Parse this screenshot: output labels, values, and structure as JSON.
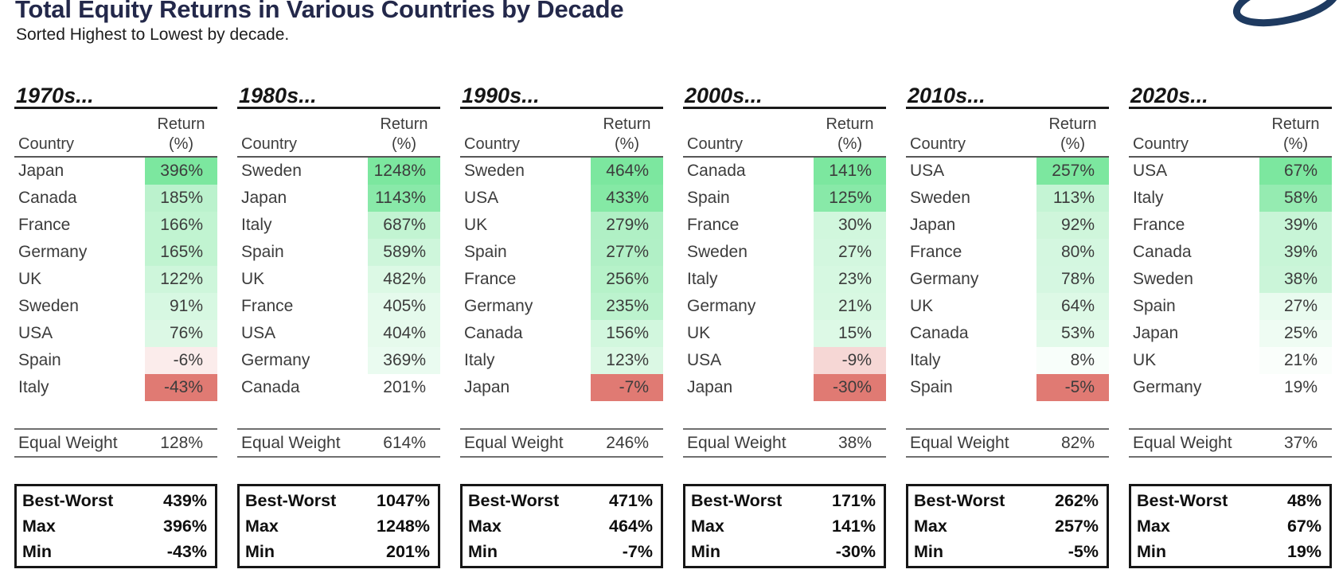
{
  "header": {
    "title": "Total Equity Returns in Various Countries by Decade",
    "subtitle": "Sorted Highest to Lowest by decade.",
    "logo_color": "#1e3a60"
  },
  "table_labels": {
    "return_line1": "Return",
    "return_line2": "(%)",
    "country": "Country",
    "equal_weight": "Equal Weight",
    "best_worst": "Best-Worst",
    "max": "Max",
    "min": "Min"
  },
  "colors": {
    "title_navy": "#23284a",
    "max_positive_fill": "#7CE79F",
    "max_negative_fill": "#E07A73",
    "neutral_fill": "#FFFFFF"
  },
  "decades": [
    {
      "label": "1970s...",
      "rows": [
        {
          "country": "Japan",
          "return": "396%",
          "fill": "#7CE79F"
        },
        {
          "country": "Canada",
          "return": "185%",
          "fill": "#BBF2CD"
        },
        {
          "country": "France",
          "return": "166%",
          "fill": "#C1F4D1"
        },
        {
          "country": "Germany",
          "return": "165%",
          "fill": "#C1F4D1"
        },
        {
          "country": "UK",
          "return": "122%",
          "fill": "#CEF6DB"
        },
        {
          "country": "Sweden",
          "return": "91%",
          "fill": "#D7F8E2"
        },
        {
          "country": "USA",
          "return": "76%",
          "fill": "#DCF8E5"
        },
        {
          "country": "Spain",
          "return": "-6%",
          "fill": "#FBECEB"
        },
        {
          "country": "Italy",
          "return": "-43%",
          "fill": "#E07A73"
        }
      ],
      "equal_weight": "128%",
      "stats": {
        "best_worst": "439%",
        "max": "396%",
        "min": "-43%"
      }
    },
    {
      "label": "1980s...",
      "rows": [
        {
          "country": "Sweden",
          "return": "1248%",
          "fill": "#7CE79F"
        },
        {
          "country": "Japan",
          "return": "1143%",
          "fill": "#89E9A9"
        },
        {
          "country": "Italy",
          "return": "687%",
          "fill": "#C2F4D2"
        },
        {
          "country": "Spain",
          "return": "589%",
          "fill": "#CEF6DB"
        },
        {
          "country": "UK",
          "return": "482%",
          "fill": "#DCF9E5"
        },
        {
          "country": "France",
          "return": "405%",
          "fill": "#E5FAEC"
        },
        {
          "country": "USA",
          "return": "404%",
          "fill": "#E6FAEC"
        },
        {
          "country": "Germany",
          "return": "369%",
          "fill": "#EAFBF0"
        },
        {
          "country": "Canada",
          "return": "201%",
          "fill": "#FFFFFF"
        }
      ],
      "equal_weight": "614%",
      "stats": {
        "best_worst": "1047%",
        "max": "1248%",
        "min": "201%"
      }
    },
    {
      "label": "1990s...",
      "rows": [
        {
          "country": "Sweden",
          "return": "464%",
          "fill": "#7CE79F"
        },
        {
          "country": "USA",
          "return": "433%",
          "fill": "#85E9A5"
        },
        {
          "country": "UK",
          "return": "279%",
          "fill": "#B0F0C5"
        },
        {
          "country": "Spain",
          "return": "277%",
          "fill": "#B1F0C6"
        },
        {
          "country": "France",
          "return": "256%",
          "fill": "#B6F2C9"
        },
        {
          "country": "Germany",
          "return": "235%",
          "fill": "#BCF3CE"
        },
        {
          "country": "Canada",
          "return": "156%",
          "fill": "#D2F7DE"
        },
        {
          "country": "Italy",
          "return": "123%",
          "fill": "#DBF8E4"
        },
        {
          "country": "Japan",
          "return": "-7%",
          "fill": "#E07A73"
        }
      ],
      "equal_weight": "246%",
      "stats": {
        "best_worst": "471%",
        "max": "464%",
        "min": "-7%"
      }
    },
    {
      "label": "2000s...",
      "rows": [
        {
          "country": "Canada",
          "return": "141%",
          "fill": "#7CE79F"
        },
        {
          "country": "Spain",
          "return": "125%",
          "fill": "#88E9A8"
        },
        {
          "country": "France",
          "return": "30%",
          "fill": "#D1F7DD"
        },
        {
          "country": "Sweden",
          "return": "27%",
          "fill": "#D3F7DF"
        },
        {
          "country": "Italy",
          "return": "23%",
          "fill": "#D6F8E1"
        },
        {
          "country": "Germany",
          "return": "21%",
          "fill": "#D8F8E2"
        },
        {
          "country": "UK",
          "return": "15%",
          "fill": "#DDF9E6"
        },
        {
          "country": "USA",
          "return": "-9%",
          "fill": "#F6D7D5"
        },
        {
          "country": "Japan",
          "return": "-30%",
          "fill": "#E07A73"
        }
      ],
      "equal_weight": "38%",
      "stats": {
        "best_worst": "171%",
        "max": "141%",
        "min": "-30%"
      }
    },
    {
      "label": "2010s...",
      "rows": [
        {
          "country": "USA",
          "return": "257%",
          "fill": "#7CE79F"
        },
        {
          "country": "Sweden",
          "return": "113%",
          "fill": "#C4F4D4"
        },
        {
          "country": "Japan",
          "return": "92%",
          "fill": "#CFF6DB"
        },
        {
          "country": "France",
          "return": "80%",
          "fill": "#D4F7E0"
        },
        {
          "country": "Germany",
          "return": "78%",
          "fill": "#D5F7E1"
        },
        {
          "country": "UK",
          "return": "64%",
          "fill": "#DDF9E6"
        },
        {
          "country": "Canada",
          "return": "53%",
          "fill": "#E2FAEA"
        },
        {
          "country": "Italy",
          "return": "8%",
          "fill": "#F8FEFA"
        },
        {
          "country": "Spain",
          "return": "-5%",
          "fill": "#E07A73"
        }
      ],
      "equal_weight": "82%",
      "stats": {
        "best_worst": "262%",
        "max": "257%",
        "min": "-5%"
      }
    },
    {
      "label": "2020s...",
      "rows": [
        {
          "country": "USA",
          "return": "67%",
          "fill": "#7CE79F"
        },
        {
          "country": "Italy",
          "return": "58%",
          "fill": "#95EBB1"
        },
        {
          "country": "France",
          "return": "39%",
          "fill": "#C8F5D7"
        },
        {
          "country": "Canada",
          "return": "39%",
          "fill": "#C8F5D7"
        },
        {
          "country": "Sweden",
          "return": "38%",
          "fill": "#CBF5D9"
        },
        {
          "country": "Spain",
          "return": "27%",
          "fill": "#E9FBEF"
        },
        {
          "country": "Japan",
          "return": "25%",
          "fill": "#EFFCF3"
        },
        {
          "country": "UK",
          "return": "21%",
          "fill": "#FAFEFB"
        },
        {
          "country": "Germany",
          "return": "19%",
          "fill": "#FFFFFF"
        }
      ],
      "equal_weight": "37%",
      "stats": {
        "best_worst": "48%",
        "max": "67%",
        "min": "19%"
      }
    }
  ],
  "chart_data": {
    "type": "table",
    "title": "Total Equity Returns in Various Countries by Decade",
    "subtitle": "Sorted Highest to Lowest by decade.",
    "columns": [
      "Country",
      "Return (%)"
    ],
    "decades": [
      {
        "decade": "1970s",
        "rows": [
          [
            "Japan",
            396
          ],
          [
            "Canada",
            185
          ],
          [
            "France",
            166
          ],
          [
            "Germany",
            165
          ],
          [
            "UK",
            122
          ],
          [
            "Sweden",
            91
          ],
          [
            "USA",
            76
          ],
          [
            "Spain",
            -6
          ],
          [
            "Italy",
            -43
          ]
        ],
        "equal_weight": 128,
        "best_worst": 439,
        "max": 396,
        "min": -43
      },
      {
        "decade": "1980s",
        "rows": [
          [
            "Sweden",
            1248
          ],
          [
            "Japan",
            1143
          ],
          [
            "Italy",
            687
          ],
          [
            "Spain",
            589
          ],
          [
            "UK",
            482
          ],
          [
            "France",
            405
          ],
          [
            "USA",
            404
          ],
          [
            "Germany",
            369
          ],
          [
            "Canada",
            201
          ]
        ],
        "equal_weight": 614,
        "best_worst": 1047,
        "max": 1248,
        "min": 201
      },
      {
        "decade": "1990s",
        "rows": [
          [
            "Sweden",
            464
          ],
          [
            "USA",
            433
          ],
          [
            "UK",
            279
          ],
          [
            "Spain",
            277
          ],
          [
            "France",
            256
          ],
          [
            "Germany",
            235
          ],
          [
            "Canada",
            156
          ],
          [
            "Italy",
            123
          ],
          [
            "Japan",
            -7
          ]
        ],
        "equal_weight": 246,
        "best_worst": 471,
        "max": 464,
        "min": -7
      },
      {
        "decade": "2000s",
        "rows": [
          [
            "Canada",
            141
          ],
          [
            "Spain",
            125
          ],
          [
            "France",
            30
          ],
          [
            "Sweden",
            27
          ],
          [
            "Italy",
            23
          ],
          [
            "Germany",
            21
          ],
          [
            "UK",
            15
          ],
          [
            "USA",
            -9
          ],
          [
            "Japan",
            -30
          ]
        ],
        "equal_weight": 38,
        "best_worst": 171,
        "max": 141,
        "min": -30
      },
      {
        "decade": "2010s",
        "rows": [
          [
            "USA",
            257
          ],
          [
            "Sweden",
            113
          ],
          [
            "Japan",
            92
          ],
          [
            "France",
            80
          ],
          [
            "Germany",
            78
          ],
          [
            "UK",
            64
          ],
          [
            "Canada",
            53
          ],
          [
            "Italy",
            8
          ],
          [
            "Spain",
            -5
          ]
        ],
        "equal_weight": 82,
        "best_worst": 262,
        "max": 257,
        "min": -5
      },
      {
        "decade": "2020s",
        "rows": [
          [
            "USA",
            67
          ],
          [
            "Italy",
            58
          ],
          [
            "France",
            39
          ],
          [
            "Canada",
            39
          ],
          [
            "Sweden",
            38
          ],
          [
            "Spain",
            27
          ],
          [
            "Japan",
            25
          ],
          [
            "UK",
            21
          ],
          [
            "Germany",
            19
          ]
        ],
        "equal_weight": 37,
        "best_worst": 48,
        "max": 67,
        "min": 19
      }
    ],
    "conditional_formatting": "per-decade color scale: column max = green #7CE79F fading to white at column min for positives; negatives fade white to red #E07A73 at most negative value",
    "legend_position": "none",
    "grid": false
  }
}
